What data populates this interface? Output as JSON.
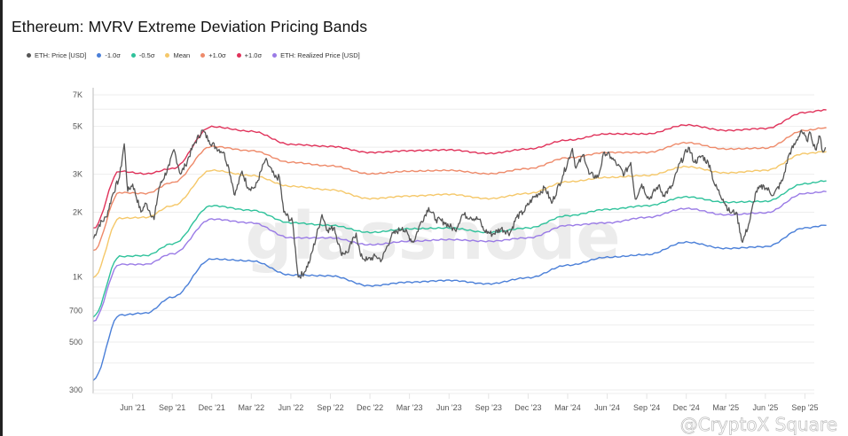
{
  "chart_data": {
    "type": "line",
    "title": "Ethereum: MVRV Extreme Deviation Pricing Bands",
    "xlabel": "",
    "ylabel": "",
    "y_scale": "log",
    "ylim": [
      300,
      7000
    ],
    "xlim": [
      "2021-03-01",
      "2025-10-20"
    ],
    "grid": true,
    "legend_position": "top-left",
    "y_ticks": [
      {
        "value": 7000,
        "label": "7K"
      },
      {
        "value": 5000,
        "label": "5K"
      },
      {
        "value": 3000,
        "label": "3K"
      },
      {
        "value": 2000,
        "label": "2K"
      },
      {
        "value": 1000,
        "label": "1K"
      },
      {
        "value": 700,
        "label": "700"
      },
      {
        "value": 500,
        "label": "500"
      },
      {
        "value": 300,
        "label": "300"
      }
    ],
    "x_ticks": [
      {
        "date": "2021-06-01",
        "label": "Jun '21"
      },
      {
        "date": "2021-09-01",
        "label": "Sep '21"
      },
      {
        "date": "2021-12-01",
        "label": "Dec '21"
      },
      {
        "date": "2022-03-01",
        "label": "Mar '22"
      },
      {
        "date": "2022-06-01",
        "label": "Jun '22"
      },
      {
        "date": "2022-09-01",
        "label": "Sep '22"
      },
      {
        "date": "2022-12-01",
        "label": "Dec '22"
      },
      {
        "date": "2023-03-01",
        "label": "Mar '23"
      },
      {
        "date": "2023-06-01",
        "label": "Jun '23"
      },
      {
        "date": "2023-09-01",
        "label": "Sep '23"
      },
      {
        "date": "2023-12-01",
        "label": "Dec '23"
      },
      {
        "date": "2024-03-01",
        "label": "Mar '24"
      },
      {
        "date": "2024-06-01",
        "label": "Jun '24"
      },
      {
        "date": "2024-09-01",
        "label": "Sep '24"
      },
      {
        "date": "2024-12-01",
        "label": "Dec '24"
      },
      {
        "date": "2025-03-01",
        "label": "Mar '25"
      },
      {
        "date": "2025-06-01",
        "label": "Jun '25"
      },
      {
        "date": "2025-09-01",
        "label": "Sep '25"
      }
    ],
    "band_dates": [
      "2021-03-01",
      "2021-05-01",
      "2021-07-01",
      "2021-09-01",
      "2021-12-01",
      "2022-03-01",
      "2022-06-01",
      "2022-09-01",
      "2022-12-01",
      "2023-03-01",
      "2023-06-01",
      "2023-09-01",
      "2023-12-01",
      "2024-03-01",
      "2024-06-01",
      "2024-09-01",
      "2024-12-01",
      "2025-03-01",
      "2025-06-01",
      "2025-09-01",
      "2025-10-20"
    ],
    "series": [
      {
        "name": "-1.0σ",
        "color": "#4a7fd8",
        "values": [
          334,
          667,
          681,
          807,
          1213,
          1189,
          1023,
          1014,
          912,
          948,
          966,
          931,
          993,
          1135,
          1236,
          1271,
          1452,
          1358,
          1384,
          1690,
          1738
        ]
      },
      {
        "name": "-0.5σ",
        "color": "#2fc29b",
        "values": [
          655,
          1247,
          1259,
          1426,
          2143,
          2042,
          1786,
          1738,
          1611,
          1675,
          1690,
          1611,
          1690,
          1927,
          2061,
          2143,
          2355,
          2223,
          2244,
          2710,
          2793
        ]
      },
      {
        "name": "Mean",
        "color": "#f5c86a",
        "values": [
          993,
          1875,
          1892,
          2143,
          3126,
          2958,
          2636,
          2541,
          2312,
          2377,
          2421,
          2312,
          2443,
          2767,
          2897,
          2958,
          3251,
          3041,
          3126,
          3741,
          3819
        ]
      },
      {
        "name": "+1.0σ",
        "color": "#ee8a6a",
        "values": [
          1321,
          2466,
          2443,
          2742,
          4036,
          3855,
          3404,
          3281,
          3013,
          3097,
          3126,
          3013,
          3184,
          3573,
          3784,
          3784,
          4198,
          3926,
          3963,
          4786,
          4932
        ]
      },
      {
        "name": "+1.0σ",
        "color": "#e0325a",
        "values": [
          1680,
          3097,
          3013,
          3184,
          4980,
          4742,
          4121,
          4036,
          3784,
          3855,
          3890,
          3741,
          3926,
          4315,
          4613,
          4613,
          5070,
          4786,
          4887,
          5800,
          5960
        ]
      },
      {
        "name": "ETH: Realized Price [USD]",
        "color": "#9a7be6",
        "values": [
          625,
          1146,
          1146,
          1282,
          1858,
          1786,
          1521,
          1521,
          1413,
          1466,
          1493,
          1466,
          1521,
          1738,
          1786,
          1892,
          2080,
          1945,
          1986,
          2443,
          2489
        ]
      }
    ],
    "price": {
      "name": "ETH: Price [USD]",
      "color": "#555555",
      "points": [
        [
          "2021-03-01",
          1500
        ],
        [
          "2021-03-15",
          1750
        ],
        [
          "2021-04-01",
          1900
        ],
        [
          "2021-04-15",
          2400
        ],
        [
          "2021-05-01",
          2900
        ],
        [
          "2021-05-12",
          4150
        ],
        [
          "2021-05-20",
          2500
        ],
        [
          "2021-06-01",
          2700
        ],
        [
          "2021-06-20",
          2000
        ],
        [
          "2021-07-01",
          2200
        ],
        [
          "2021-07-20",
          1850
        ],
        [
          "2021-08-01",
          2600
        ],
        [
          "2021-08-25",
          3300
        ],
        [
          "2021-09-05",
          3900
        ],
        [
          "2021-09-20",
          3000
        ],
        [
          "2021-10-01",
          3300
        ],
        [
          "2021-10-20",
          4100
        ],
        [
          "2021-11-10",
          4800
        ],
        [
          "2021-11-25",
          4300
        ],
        [
          "2021-12-10",
          4000
        ],
        [
          "2021-12-28",
          3800
        ],
        [
          "2022-01-10",
          3200
        ],
        [
          "2022-01-24",
          2400
        ],
        [
          "2022-02-10",
          3100
        ],
        [
          "2022-02-24",
          2600
        ],
        [
          "2022-03-10",
          2600
        ],
        [
          "2022-04-03",
          3500
        ],
        [
          "2022-04-25",
          2900
        ],
        [
          "2022-05-05",
          2900
        ],
        [
          "2022-05-15",
          2000
        ],
        [
          "2022-06-05",
          1800
        ],
        [
          "2022-06-18",
          1000
        ],
        [
          "2022-07-01",
          1050
        ],
        [
          "2022-07-15",
          1200
        ],
        [
          "2022-08-12",
          1950
        ],
        [
          "2022-08-25",
          1650
        ],
        [
          "2022-09-10",
          1700
        ],
        [
          "2022-09-25",
          1300
        ],
        [
          "2022-10-10",
          1300
        ],
        [
          "2022-10-30",
          1600
        ],
        [
          "2022-11-10",
          1250
        ],
        [
          "2022-11-25",
          1200
        ],
        [
          "2022-12-15",
          1250
        ],
        [
          "2022-12-28",
          1200
        ],
        [
          "2023-01-20",
          1550
        ],
        [
          "2023-02-15",
          1700
        ],
        [
          "2023-03-10",
          1450
        ],
        [
          "2023-03-25",
          1750
        ],
        [
          "2023-04-15",
          2100
        ],
        [
          "2023-05-01",
          1850
        ],
        [
          "2023-05-20",
          1800
        ],
        [
          "2023-06-15",
          1650
        ],
        [
          "2023-07-01",
          1950
        ],
        [
          "2023-07-20",
          1900
        ],
        [
          "2023-08-10",
          1850
        ],
        [
          "2023-08-20",
          1650
        ],
        [
          "2023-09-10",
          1580
        ],
        [
          "2023-09-30",
          1680
        ],
        [
          "2023-10-20",
          1600
        ],
        [
          "2023-11-05",
          1900
        ],
        [
          "2023-11-20",
          2000
        ],
        [
          "2023-12-10",
          2300
        ],
        [
          "2024-01-10",
          2600
        ],
        [
          "2024-01-25",
          2200
        ],
        [
          "2024-02-20",
          2950
        ],
        [
          "2024-03-12",
          3950
        ],
        [
          "2024-03-20",
          3200
        ],
        [
          "2024-04-08",
          3700
        ],
        [
          "2024-04-20",
          3000
        ],
        [
          "2024-05-10",
          2900
        ],
        [
          "2024-05-25",
          3800
        ],
        [
          "2024-06-10",
          3600
        ],
        [
          "2024-06-25",
          3300
        ],
        [
          "2024-07-10",
          3000
        ],
        [
          "2024-07-25",
          3400
        ],
        [
          "2024-08-05",
          2300
        ],
        [
          "2024-08-20",
          2700
        ],
        [
          "2024-09-06",
          2300
        ],
        [
          "2024-09-28",
          2650
        ],
        [
          "2024-10-10",
          2400
        ],
        [
          "2024-10-30",
          2650
        ],
        [
          "2024-11-12",
          3200
        ],
        [
          "2024-12-06",
          4000
        ],
        [
          "2024-12-20",
          3400
        ],
        [
          "2025-01-07",
          3650
        ],
        [
          "2025-01-25",
          3300
        ],
        [
          "2025-02-05",
          2700
        ],
        [
          "2025-02-25",
          2300
        ],
        [
          "2025-03-10",
          2000
        ],
        [
          "2025-03-25",
          2000
        ],
        [
          "2025-04-09",
          1450
        ],
        [
          "2025-04-25",
          1800
        ],
        [
          "2025-05-10",
          2500
        ],
        [
          "2025-05-28",
          2650
        ],
        [
          "2025-06-20",
          2400
        ],
        [
          "2025-07-10",
          2800
        ],
        [
          "2025-07-25",
          3700
        ],
        [
          "2025-08-10",
          4200
        ],
        [
          "2025-08-23",
          4800
        ],
        [
          "2025-09-05",
          4300
        ],
        [
          "2025-09-14",
          4650
        ],
        [
          "2025-09-25",
          3900
        ],
        [
          "2025-10-05",
          4500
        ],
        [
          "2025-10-12",
          3800
        ],
        [
          "2025-10-18",
          4000
        ]
      ]
    }
  },
  "legend": [
    {
      "label": "ETH: Price [USD]",
      "color": "#555555"
    },
    {
      "label": "-1.0σ",
      "color": "#4a7fd8"
    },
    {
      "label": "-0.5σ",
      "color": "#2fc29b"
    },
    {
      "label": "Mean",
      "color": "#f5c86a"
    },
    {
      "label": "+1.0σ",
      "color": "#ee8a6a"
    },
    {
      "label": "+1.0σ",
      "color": "#e0325a"
    },
    {
      "label": "ETH: Realized Price [USD]",
      "color": "#9a7be6"
    }
  ],
  "watermarks": {
    "center": "glassnode",
    "corner": "@CryptoX Square"
  }
}
